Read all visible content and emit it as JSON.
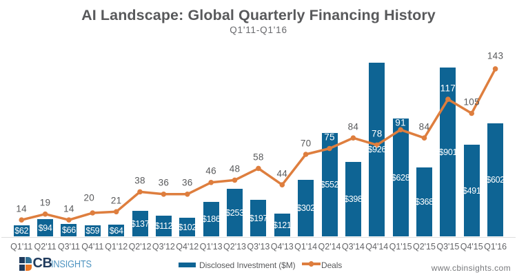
{
  "chart": {
    "title": "AI Landscape: Global Quarterly Financing History",
    "subtitle": "Q1'11-Q1'16"
  },
  "chart_data": {
    "type": "bar",
    "subtype": "combo-bar-line",
    "title": "AI Landscape: Global Quarterly Financing History",
    "subtitle": "Q1'11-Q1'16",
    "categories": [
      "Q1'11",
      "Q2'11",
      "Q3'11",
      "Q4'11",
      "Q1'12",
      "Q2'12",
      "Q3'12",
      "Q4'12",
      "Q1'13",
      "Q2'13",
      "Q3'13",
      "Q4'13",
      "Q1'14",
      "Q2'14",
      "Q3'14",
      "Q4'14",
      "Q1'15",
      "Q2'15",
      "Q3'15",
      "Q4'15",
      "Q1'16"
    ],
    "series": [
      {
        "name": "Disclosed Investment ($M)",
        "type": "bar",
        "values": [
          62,
          94,
          66,
          59,
          64,
          137,
          112,
          102,
          186,
          253,
          197,
          121,
          302,
          552,
          398,
          926,
          628,
          368,
          901,
          491,
          602
        ],
        "labels": [
          "$62",
          "$94",
          "$66",
          "$59",
          "$64",
          "$137",
          "$112",
          "$102",
          "$186",
          "$253",
          "$197",
          "$121",
          "$302",
          "$552",
          "$398",
          "$926",
          "$628",
          "$368",
          "$901",
          "$491",
          "$602"
        ],
        "color": "#0E6494",
        "label_color": "#FFFFFF",
        "label_position": "inside-center"
      },
      {
        "name": "Deals",
        "type": "line",
        "values": [
          14,
          19,
          14,
          20,
          21,
          38,
          36,
          36,
          46,
          48,
          58,
          44,
          70,
          75,
          84,
          78,
          91,
          84,
          117,
          105,
          143
        ],
        "labels": [
          "14",
          "19",
          "14",
          "20",
          "21",
          "38",
          "36",
          "36",
          "46",
          "48",
          "58",
          "44",
          "70",
          "75",
          "84",
          "78",
          "91",
          "84",
          "117",
          "105",
          "143"
        ],
        "color": "#DE7E3E",
        "label_color": "#58595B",
        "label_color_over_bar": "#FFFFFF",
        "marker": "circle",
        "label_position": "above"
      }
    ],
    "xlabel": "",
    "ylabel": "",
    "axis_left": {
      "visible": false,
      "min": 0,
      "max": 1000
    },
    "axis_right": {
      "visible": false,
      "min": 0,
      "max": 160
    },
    "grid": false,
    "legend_position": "bottom-center"
  },
  "legend": {
    "bar_label": "Disclosed Investment ($M)",
    "line_label": "Deals"
  },
  "footer": {
    "website": "www.cbinsights.com"
  },
  "logo": {
    "text_bold": "CB",
    "text_light": "INSIGHTS",
    "navy": "#1F3A5C",
    "blue": "#306E92",
    "orange": "#EC7623"
  }
}
